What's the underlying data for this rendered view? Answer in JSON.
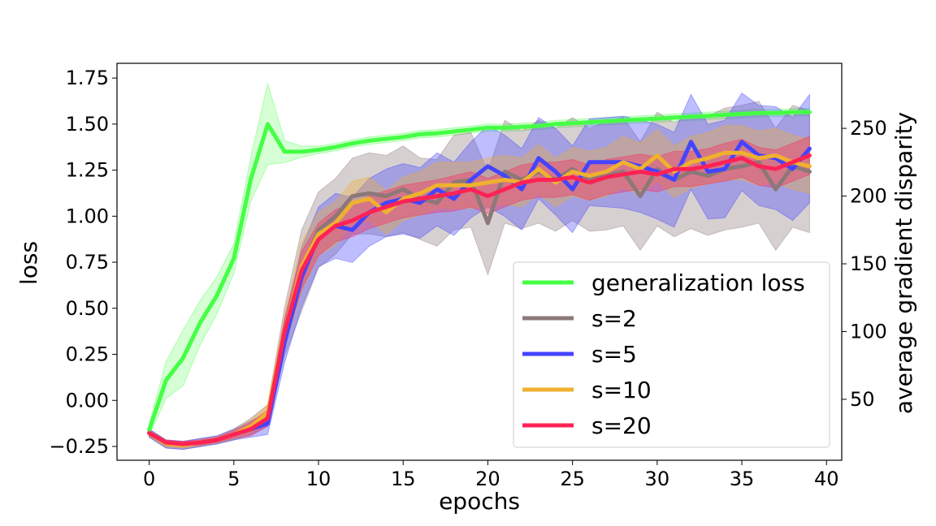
{
  "chart_data": {
    "type": "line",
    "title": "",
    "xlabel": "epochs",
    "ylabel_left": "loss",
    "ylabel_right": "average gradient disparity",
    "xlim": [
      -1.9,
      40.9
    ],
    "ylim_left": [
      -0.325,
      1.83
    ],
    "ylim_right": [
      5,
      298
    ],
    "xticks": [
      0,
      5,
      10,
      15,
      20,
      25,
      30,
      35,
      40
    ],
    "xtick_labels": [
      "0",
      "5",
      "10",
      "15",
      "20",
      "25",
      "30",
      "35",
      "40"
    ],
    "yticks_left": [
      -0.25,
      0.0,
      0.25,
      0.5,
      0.75,
      1.0,
      1.25,
      1.5,
      1.75
    ],
    "ytick_labels_left": [
      "−0.25",
      "0.00",
      "0.25",
      "0.50",
      "0.75",
      "1.00",
      "1.25",
      "1.50",
      "1.75"
    ],
    "yticks_right": [
      50,
      100,
      150,
      200,
      250
    ],
    "ytick_labels_right": [
      "50",
      "100",
      "150",
      "200",
      "250"
    ],
    "legend_position": "lower-right",
    "grid": false,
    "x": [
      0,
      1,
      2,
      3,
      4,
      5,
      6,
      7,
      8,
      9,
      10,
      11,
      12,
      13,
      14,
      15,
      16,
      17,
      18,
      19,
      20,
      21,
      22,
      23,
      24,
      25,
      26,
      27,
      28,
      29,
      30,
      31,
      32,
      33,
      34,
      35,
      36,
      37,
      38,
      39
    ],
    "series": [
      {
        "name": "generalization loss",
        "axis": "left",
        "color": "#44ff44",
        "values": [
          -0.16,
          0.11,
          0.23,
          0.42,
          0.57,
          0.77,
          1.2,
          1.5,
          1.35,
          1.35,
          1.36,
          1.375,
          1.395,
          1.41,
          1.42,
          1.43,
          1.445,
          1.45,
          1.46,
          1.47,
          1.48,
          1.48,
          1.485,
          1.49,
          1.5,
          1.505,
          1.51,
          1.515,
          1.52,
          1.525,
          1.53,
          1.535,
          1.54,
          1.545,
          1.55,
          1.555,
          1.56,
          1.56,
          1.565,
          1.565
        ],
        "band": [
          0.03,
          0.1,
          0.15,
          0.12,
          0.1,
          0.08,
          0.12,
          0.22,
          0.06,
          0.03,
          0.02,
          0.02,
          0.02,
          0.02,
          0.02,
          0.02,
          0.02,
          0.02,
          0.02,
          0.02,
          0.02,
          0.02,
          0.02,
          0.02,
          0.02,
          0.02,
          0.02,
          0.02,
          0.02,
          0.02,
          0.02,
          0.02,
          0.02,
          0.02,
          0.02,
          0.02,
          0.02,
          0.02,
          0.02,
          0.02
        ]
      },
      {
        "name": "s=2",
        "axis": "right",
        "color": "#8c7878",
        "values": [
          25,
          17,
          16,
          18,
          20,
          24,
          30,
          38,
          100,
          145,
          175,
          185,
          200,
          202,
          200,
          205,
          198,
          195,
          210,
          212,
          180,
          218,
          212,
          218,
          212,
          220,
          212,
          215,
          218,
          200,
          220,
          212,
          218,
          215,
          220,
          222,
          225,
          205,
          222,
          218
        ],
        "band": [
          3,
          3,
          3,
          3,
          3,
          4,
          6,
          8,
          18,
          30,
          28,
          28,
          28,
          30,
          30,
          32,
          30,
          32,
          35,
          35,
          38,
          38,
          36,
          38,
          38,
          38,
          38,
          40,
          40,
          40,
          42,
          42,
          42,
          44,
          45,
          45,
          45,
          45,
          45,
          45
        ]
      },
      {
        "name": "s=5",
        "axis": "right",
        "color": "#4444ff",
        "values": [
          25,
          17,
          16,
          18,
          20,
          24,
          28,
          32,
          92,
          140,
          170,
          178,
          175,
          188,
          195,
          198,
          195,
          205,
          198,
          212,
          222,
          215,
          205,
          228,
          218,
          205,
          225,
          225,
          225,
          222,
          218,
          212,
          240,
          218,
          220,
          240,
          230,
          228,
          220,
          235
        ],
        "band": [
          3,
          3,
          3,
          3,
          3,
          4,
          6,
          8,
          15,
          22,
          22,
          24,
          24,
          25,
          25,
          26,
          26,
          27,
          27,
          28,
          30,
          30,
          30,
          30,
          32,
          32,
          32,
          33,
          34,
          34,
          35,
          35,
          35,
          35,
          36,
          36,
          37,
          38,
          38,
          40
        ]
      },
      {
        "name": "s=10",
        "axis": "right",
        "color": "#f0b030",
        "values": [
          25,
          17,
          16,
          18,
          20,
          24,
          30,
          40,
          100,
          148,
          172,
          180,
          195,
          198,
          188,
          198,
          202,
          208,
          208,
          208,
          210,
          212,
          210,
          220,
          210,
          218,
          215,
          218,
          225,
          220,
          230,
          218,
          225,
          228,
          232,
          232,
          228,
          230,
          225,
          222
        ],
        "band": [
          2,
          2,
          2,
          2,
          2,
          3,
          5,
          6,
          12,
          18,
          16,
          16,
          16,
          16,
          16,
          16,
          16,
          17,
          17,
          17,
          18,
          18,
          18,
          18,
          18,
          18,
          18,
          18,
          19,
          19,
          19,
          19,
          19,
          19,
          20,
          20,
          20,
          20,
          20,
          20
        ]
      },
      {
        "name": "s=20",
        "axis": "right",
        "color": "#ff2255",
        "values": [
          25,
          18,
          17,
          18,
          20,
          24,
          28,
          36,
          100,
          145,
          168,
          178,
          182,
          188,
          192,
          196,
          198,
          200,
          202,
          205,
          200,
          205,
          210,
          212,
          212,
          214,
          210,
          214,
          216,
          218,
          216,
          220,
          220,
          222,
          225,
          228,
          222,
          220,
          225,
          230
        ],
        "band": [
          2,
          2,
          2,
          2,
          2,
          3,
          5,
          6,
          10,
          14,
          12,
          12,
          12,
          12,
          12,
          12,
          12,
          12,
          13,
          13,
          13,
          13,
          13,
          13,
          13,
          13,
          13,
          13,
          13,
          13,
          13,
          13,
          13,
          13,
          14,
          14,
          14,
          14,
          14,
          14
        ]
      }
    ]
  }
}
